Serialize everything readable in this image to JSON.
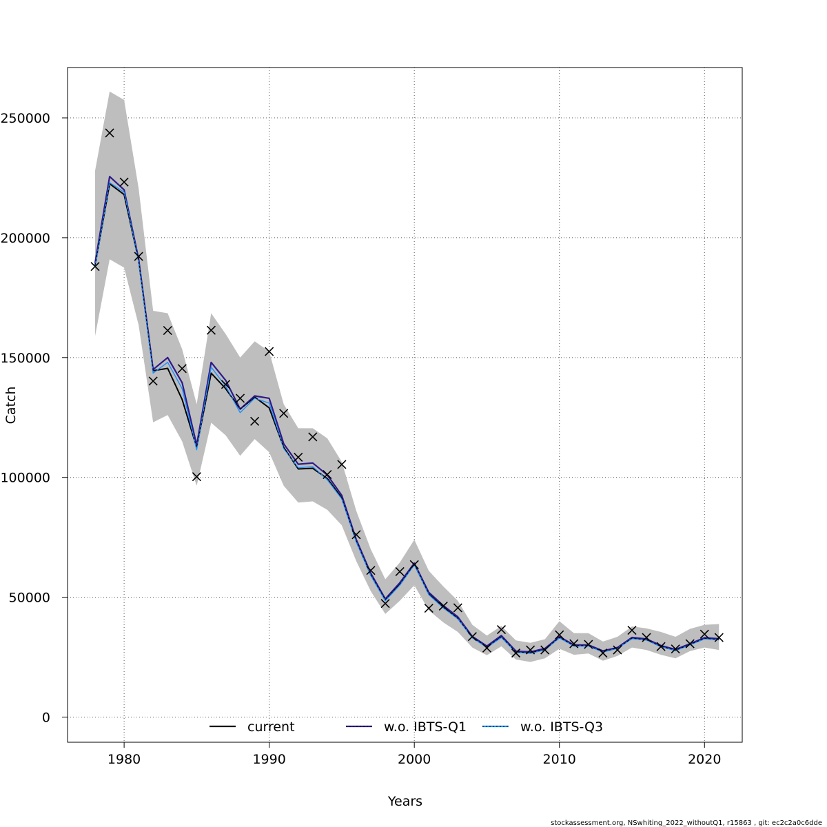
{
  "chart_data": {
    "type": "line",
    "title": "",
    "xlabel": "Years",
    "ylabel": "Catch",
    "xlim": [
      1976.1,
      2022.6
    ],
    "ylim": [
      -10500,
      271000
    ],
    "x_ticks": [
      1980,
      1990,
      2000,
      2010,
      2020
    ],
    "y_ticks": [
      0,
      50000,
      100000,
      150000,
      200000,
      250000
    ],
    "grid": true,
    "legend_position": "bottom",
    "colors": {
      "band": "#bebebe",
      "current": "#000000",
      "q1": "#2e1a8a",
      "q3": "#1e90ff",
      "observed": "#000000",
      "grid": "#555555"
    },
    "years": [
      1978,
      1979,
      1980,
      1981,
      1982,
      1983,
      1984,
      1985,
      1986,
      1987,
      1988,
      1989,
      1990,
      1991,
      1992,
      1993,
      1994,
      1995,
      1996,
      1997,
      1998,
      1999,
      2000,
      2001,
      2002,
      2003,
      2004,
      2005,
      2006,
      2007,
      2008,
      2009,
      2010,
      2011,
      2012,
      2013,
      2014,
      2015,
      2016,
      2017,
      2018,
      2019,
      2020,
      2021
    ],
    "observed": [
      188000,
      243700,
      223200,
      192200,
      140200,
      161300,
      145400,
      100300,
      161400,
      138800,
      133000,
      123400,
      152500,
      126700,
      108400,
      116900,
      101200,
      105400,
      76100,
      61200,
      47400,
      60700,
      63600,
      45400,
      46300,
      45600,
      33600,
      28800,
      36500,
      26700,
      28000,
      28000,
      34300,
      30600,
      30300,
      26700,
      28000,
      36200,
      33200,
      29400,
      28400,
      30600,
      34600,
      33200
    ],
    "band_upper": [
      228000,
      261000,
      257500,
      220500,
      169500,
      168500,
      153500,
      130500,
      168500,
      159800,
      150000,
      156800,
      152500,
      130500,
      120500,
      120500,
      116300,
      106500,
      86000,
      70000,
      57500,
      64500,
      74000,
      61000,
      54500,
      48500,
      38500,
      34000,
      38000,
      32000,
      31000,
      32500,
      40000,
      35000,
      35000,
      31500,
      33500,
      37800,
      37000,
      35500,
      33500,
      36800,
      38500,
      38800
    ],
    "band_lower": [
      159000,
      191000,
      187500,
      163500,
      123000,
      126000,
      115000,
      96500,
      122800,
      117500,
      109000,
      116000,
      110500,
      96500,
      89500,
      90000,
      86500,
      80000,
      65000,
      52500,
      43000,
      48500,
      55000,
      44500,
      39500,
      35500,
      29000,
      25800,
      29500,
      24000,
      23000,
      24500,
      28500,
      26000,
      26500,
      23500,
      25500,
      29000,
      28000,
      26000,
      24500,
      27500,
      29000,
      28000
    ],
    "series": [
      {
        "name": "current",
        "values": [
          188500,
          222500,
          218000,
          190500,
          144500,
          145500,
          132500,
          112500,
          143500,
          137000,
          128500,
          133500,
          129000,
          112500,
          103500,
          103800,
          99500,
          91500,
          73500,
          59500,
          49000,
          55500,
          63800,
          51500,
          45800,
          41200,
          33300,
          29300,
          33500,
          27200,
          26800,
          28200,
          33200,
          29800,
          29800,
          27300,
          28800,
          32900,
          32300,
          29500,
          27900,
          30300,
          32800,
          32400
        ]
      },
      {
        "name": "w.o. IBTS-Q1",
        "values": [
          189500,
          225500,
          220000,
          191000,
          145000,
          150000,
          139500,
          113500,
          148000,
          140500,
          128500,
          134000,
          133000,
          114000,
          105500,
          106000,
          101000,
          92500,
          74000,
          60000,
          49300,
          56000,
          64200,
          52000,
          46500,
          41800,
          33600,
          29600,
          34000,
          27500,
          27200,
          28600,
          33500,
          30100,
          30100,
          27600,
          29000,
          33200,
          32600,
          29800,
          28200,
          30600,
          33100,
          32700
        ]
      },
      {
        "name": "w.o. IBTS-Q3",
        "values": [
          188000,
          223000,
          219000,
          190000,
          143500,
          148000,
          137000,
          111500,
          146000,
          138000,
          127000,
          133000,
          131000,
          112000,
          104000,
          104500,
          99000,
          91000,
          73000,
          59000,
          48500,
          55000,
          63500,
          51000,
          45500,
          41000,
          33000,
          29000,
          33200,
          27000,
          26600,
          28000,
          33000,
          29600,
          29600,
          27100,
          28600,
          32700,
          32100,
          29300,
          27700,
          30100,
          32600,
          32200
        ]
      }
    ],
    "legend_entries": [
      "current",
      "w.o. IBTS-Q1",
      "w.o. IBTS-Q3"
    ],
    "footer": "stockassessment.org, NSwhiting_2022_withoutQ1, r15863 , git: ec2c2a0c6dde"
  }
}
